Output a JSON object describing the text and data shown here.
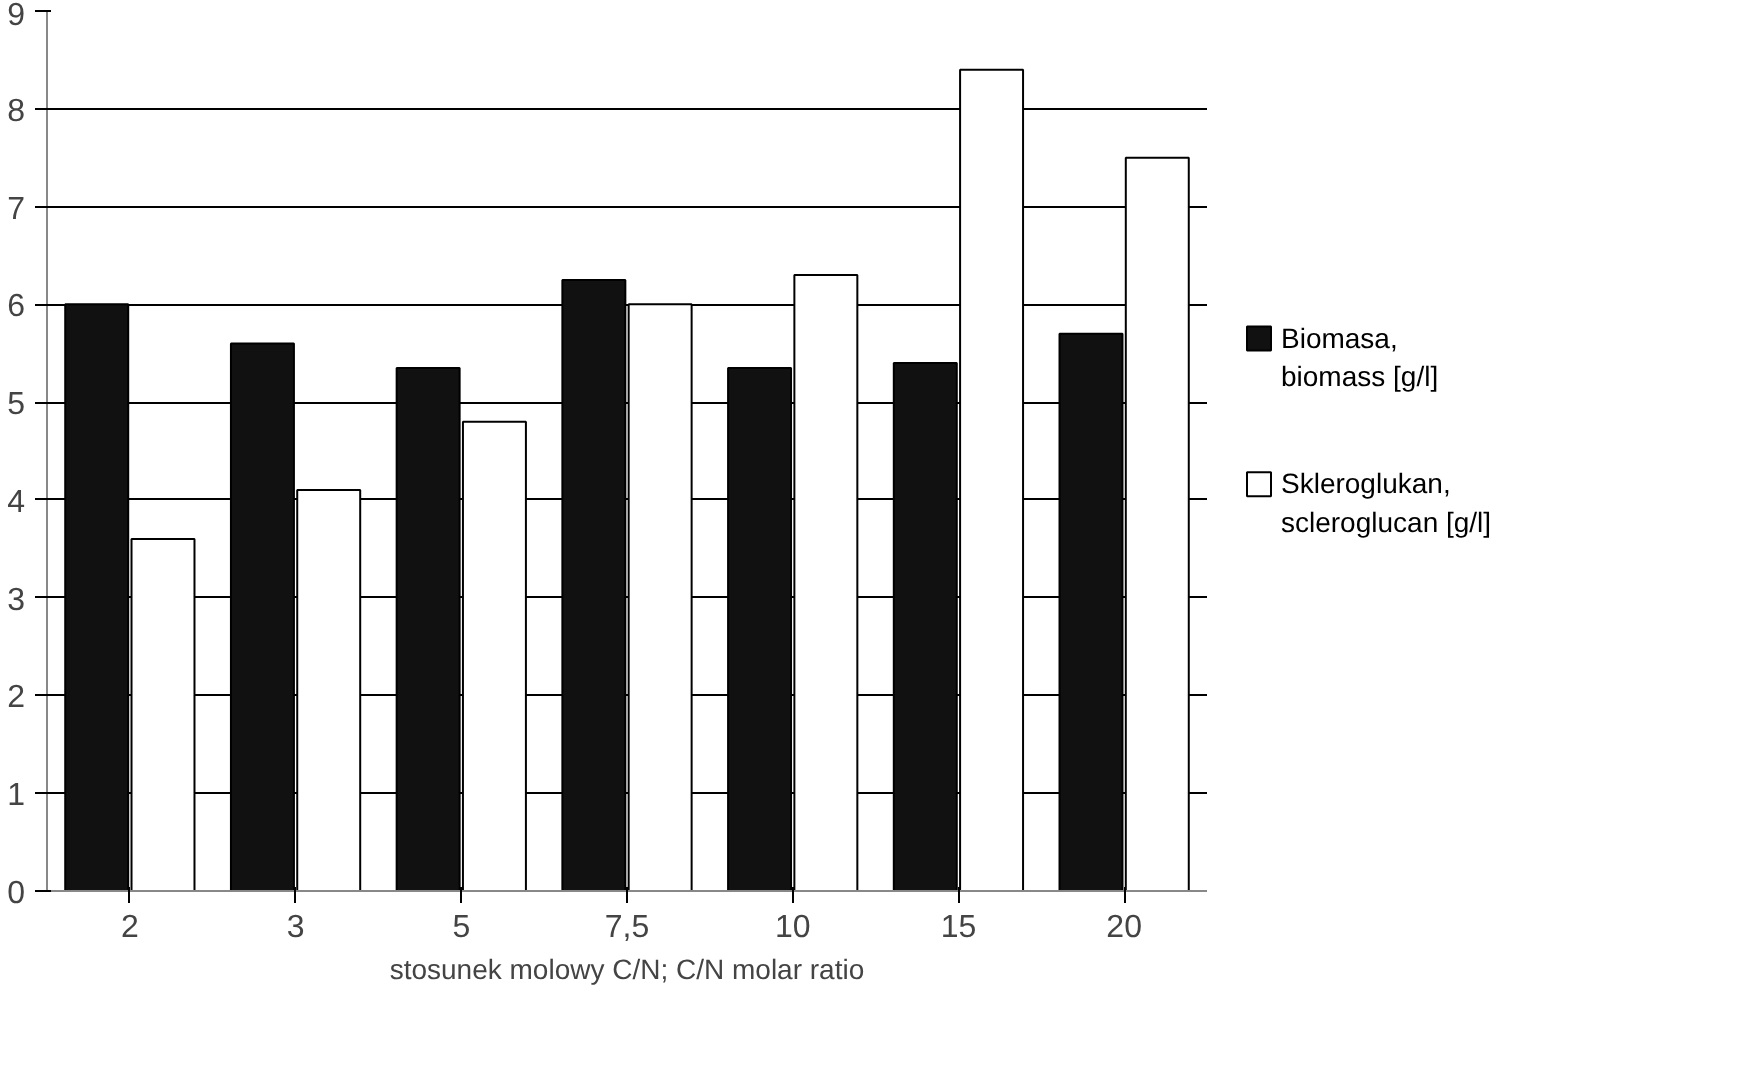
{
  "chart_data": {
    "type": "bar",
    "xlabel": "stosunek molowy C/N; C/N molar ratio",
    "categories": [
      "2",
      "3",
      "5",
      "7,5",
      "10",
      "15",
      "20"
    ],
    "series": [
      {
        "name": "Biomasa, biomass [g/l]",
        "color": "#111111",
        "values": [
          6.0,
          5.6,
          5.35,
          6.25,
          5.35,
          5.4,
          5.7
        ]
      },
      {
        "name": "Skleroglukan, scleroglucan [g/l]",
        "color": "#ffffff",
        "values": [
          3.6,
          4.1,
          4.8,
          6.0,
          6.3,
          8.4,
          7.5
        ]
      }
    ],
    "ylim": [
      0,
      9
    ],
    "yticks": [
      0,
      1,
      2,
      3,
      4,
      5,
      6,
      7,
      8,
      9
    ],
    "grid": "y",
    "legend": "right"
  }
}
